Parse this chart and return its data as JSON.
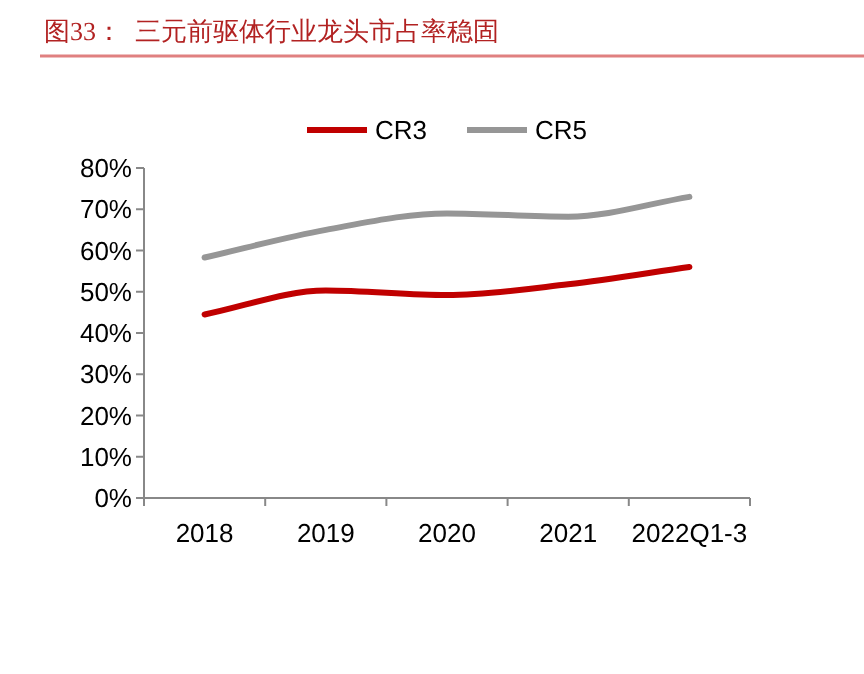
{
  "chart_data": {
    "type": "line",
    "title": "图33：  三元前驱体行业龙头市占率稳固",
    "categories": [
      "2018",
      "2019",
      "2020",
      "2021",
      "2022Q1-3"
    ],
    "series": [
      {
        "name": "CR3",
        "color": "#c00000",
        "values": [
          44.5,
          50.3,
          49.2,
          51.8,
          56
        ]
      },
      {
        "name": "CR5",
        "color": "#969696",
        "values": [
          58.3,
          65,
          69,
          68.2,
          73
        ]
      }
    ],
    "ylim": [
      0,
      80
    ],
    "yticks": [
      {
        "value": 0,
        "label": "0%"
      },
      {
        "value": 10,
        "label": "10%"
      },
      {
        "value": 20,
        "label": "20%"
      },
      {
        "value": 30,
        "label": "30%"
      },
      {
        "value": 40,
        "label": "40%"
      },
      {
        "value": 50,
        "label": "50%"
      },
      {
        "value": 60,
        "label": "60%"
      },
      {
        "value": 70,
        "label": "70%"
      },
      {
        "value": 80,
        "label": "80%"
      }
    ],
    "legend": "top",
    "grid": false,
    "marker": "none",
    "line_style": "solid"
  }
}
